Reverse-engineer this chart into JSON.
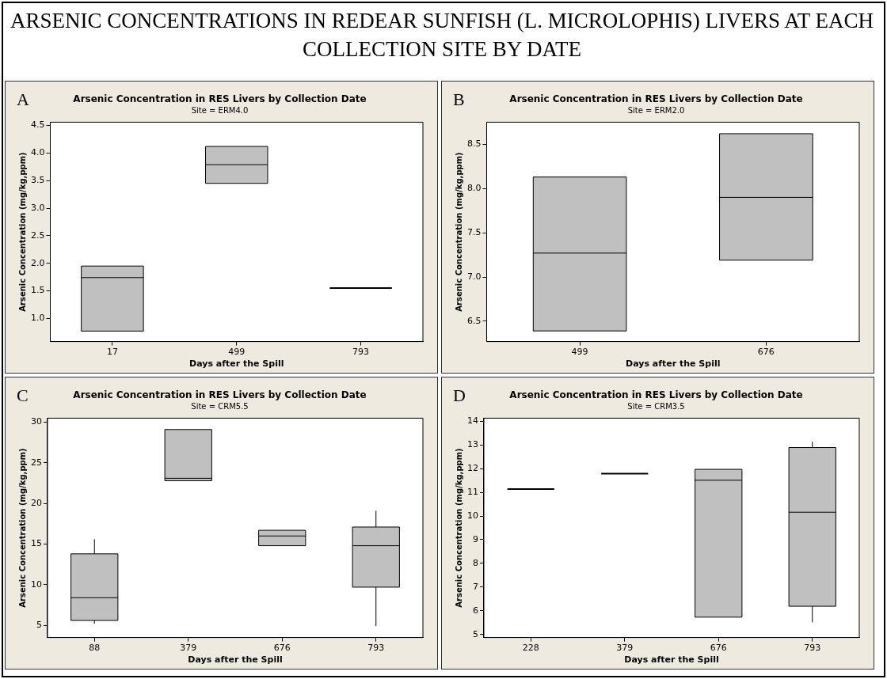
{
  "chart_data": [
    {
      "type": "box",
      "title": "Arsenic Concentration in RES Livers by Collection Date",
      "subtitle": "Site = ERM4.0",
      "xlabel": "Days after the Spill",
      "ylabel": "Arsenic Concentration (mg/kg,ppm)",
      "categories": [
        "17",
        "499",
        "793"
      ],
      "colors": [
        "#c0c0c0",
        "#c0c0c0",
        "#000000"
      ],
      "boxes": [
        {
          "low": 0.77,
          "q1": 0.77,
          "median": 1.74,
          "q3": 1.95,
          "high": 1.95
        },
        {
          "low": 3.45,
          "q1": 3.45,
          "median": 3.79,
          "q3": 4.12,
          "high": 4.12
        },
        {
          "low": 1.55,
          "q1": 1.55,
          "median": 1.55,
          "q3": 1.55,
          "high": 1.55
        }
      ],
      "ylim": [
        0.58,
        4.56
      ],
      "yticks": [
        {
          "value": 1,
          "label": "1.0"
        },
        1.5,
        {
          "value": 2,
          "label": "2.0"
        },
        2.5,
        {
          "value": 3,
          "label": "3.0"
        },
        3.5,
        {
          "value": 4,
          "label": "4.0"
        },
        4.5
      ],
      "grid": false,
      "legend": false,
      "annotations": [
        "ARSENIC CONCENTRATIONS IN REDEAR SUNFISH (L. MICROLOPHIS) LIVERS AT EACH COLLECTION SITE BY DATE",
        "A"
      ]
    },
    {
      "type": "box",
      "title": "Arsenic Concentration in RES Livers by Collection Date",
      "subtitle": "Site = ERM2.0",
      "xlabel": "Days after the Spill",
      "ylabel": "Arsenic Concentration (mg/kg,ppm)",
      "categories": [
        "499",
        "676"
      ],
      "color": "#c0c0c0",
      "boxes": [
        {
          "low": 6.39,
          "q1": 6.39,
          "median": 7.27,
          "q3": 8.13,
          "high": 8.13
        },
        {
          "low": 7.19,
          "q1": 7.19,
          "median": 7.9,
          "q3": 8.62,
          "high": 8.62
        }
      ],
      "ylim": [
        6.27,
        8.75
      ],
      "yticks": [
        6.5,
        {
          "value": 7,
          "label": "7.0"
        },
        7.5,
        {
          "value": 8,
          "label": "8.0"
        },
        8.5
      ],
      "grid": false,
      "legend": false,
      "annotations": [
        "B"
      ]
    },
    {
      "type": "box",
      "title": "Arsenic Concentration in RES Livers by Collection Date",
      "subtitle": "Site = CRM5.5",
      "xlabel": "Days after the Spill",
      "ylabel": "Arsenic Concentration (mg/kg,ppm)",
      "categories": [
        "88",
        "379",
        "676",
        "793"
      ],
      "color": "#c0c0c0",
      "boxes": [
        {
          "low": 5.2,
          "q1": 5.6,
          "median": 8.4,
          "q3": 13.8,
          "high": 15.6
        },
        {
          "low": 22.8,
          "q1": 22.8,
          "median": 23.1,
          "q3": 29.1,
          "high": 29.1
        },
        {
          "low": 14.8,
          "q1": 14.8,
          "median": 16,
          "q3": 16.7,
          "high": 16.7
        },
        {
          "low": 4.9,
          "q1": 9.7,
          "median": 14.8,
          "q3": 17.1,
          "high": 19.1
        }
      ],
      "ylim": [
        3.5,
        30.5
      ],
      "yticks": [
        5,
        10,
        15,
        20,
        25,
        30
      ],
      "grid": false,
      "legend": false,
      "annotations": [
        "C"
      ]
    },
    {
      "type": "box",
      "title": "Arsenic Concentration in RES Livers by Collection Date",
      "subtitle": "Site = CRM3.5",
      "xlabel": "Days after the Spill",
      "ylabel": "Arsenic Concentration (mg/kg,ppm)",
      "categories": [
        "228",
        "379",
        "676",
        "793"
      ],
      "colors": [
        "#000000",
        "#000000",
        "#c0c0c0",
        "#c0c0c0"
      ],
      "boxes": [
        {
          "low": 11.14,
          "q1": 11.14,
          "median": 11.14,
          "q3": 11.14,
          "high": 11.14
        },
        {
          "low": 11.79,
          "q1": 11.79,
          "median": 11.79,
          "q3": 11.79,
          "high": 11.79
        },
        {
          "low": 5.73,
          "q1": 5.73,
          "median": 11.51,
          "q3": 11.97,
          "high": 11.97
        },
        {
          "low": 5.51,
          "q1": 6.19,
          "median": 10.16,
          "q3": 12.89,
          "high": 13.13
        }
      ],
      "ylim": [
        4.87,
        14.13
      ],
      "yticks": [
        5,
        6,
        7,
        8,
        9,
        10,
        11,
        12,
        13,
        14
      ],
      "grid": false,
      "legend": false,
      "annotations": [
        "D"
      ]
    }
  ]
}
